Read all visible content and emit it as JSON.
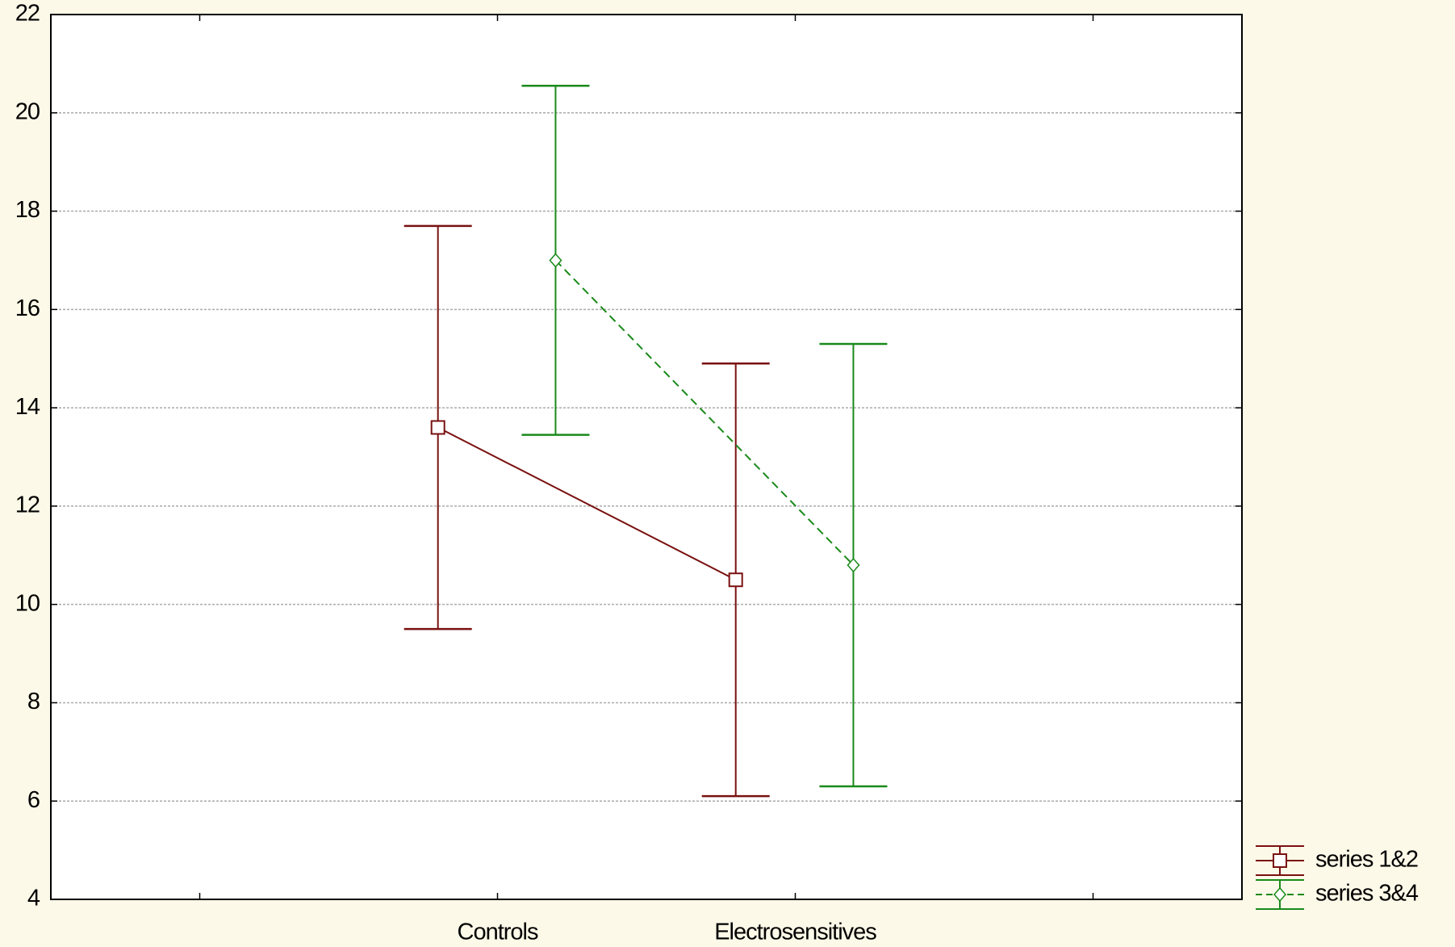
{
  "chart_data": {
    "type": "line",
    "categories": [
      null,
      "Controls",
      "Electrosensitives",
      null
    ],
    "series": [
      {
        "name": "series 1&2",
        "color": "#7a1010",
        "marker": "square",
        "linestyle": "solid",
        "values": [
          null,
          13.6,
          10.5,
          null
        ],
        "errors": [
          null,
          4.1,
          4.4,
          null
        ]
      },
      {
        "name": "series 3&4",
        "color": "#1a8a1a",
        "marker": "diamond",
        "linestyle": "dashed",
        "values": [
          null,
          17.0,
          10.8,
          null
        ],
        "errors": [
          null,
          3.55,
          4.5,
          null
        ]
      }
    ],
    "ylim": [
      4,
      22
    ],
    "yticks": [
      4,
      6,
      8,
      10,
      12,
      14,
      16,
      18,
      20,
      22
    ],
    "grid": true,
    "legend": "lower right"
  }
}
